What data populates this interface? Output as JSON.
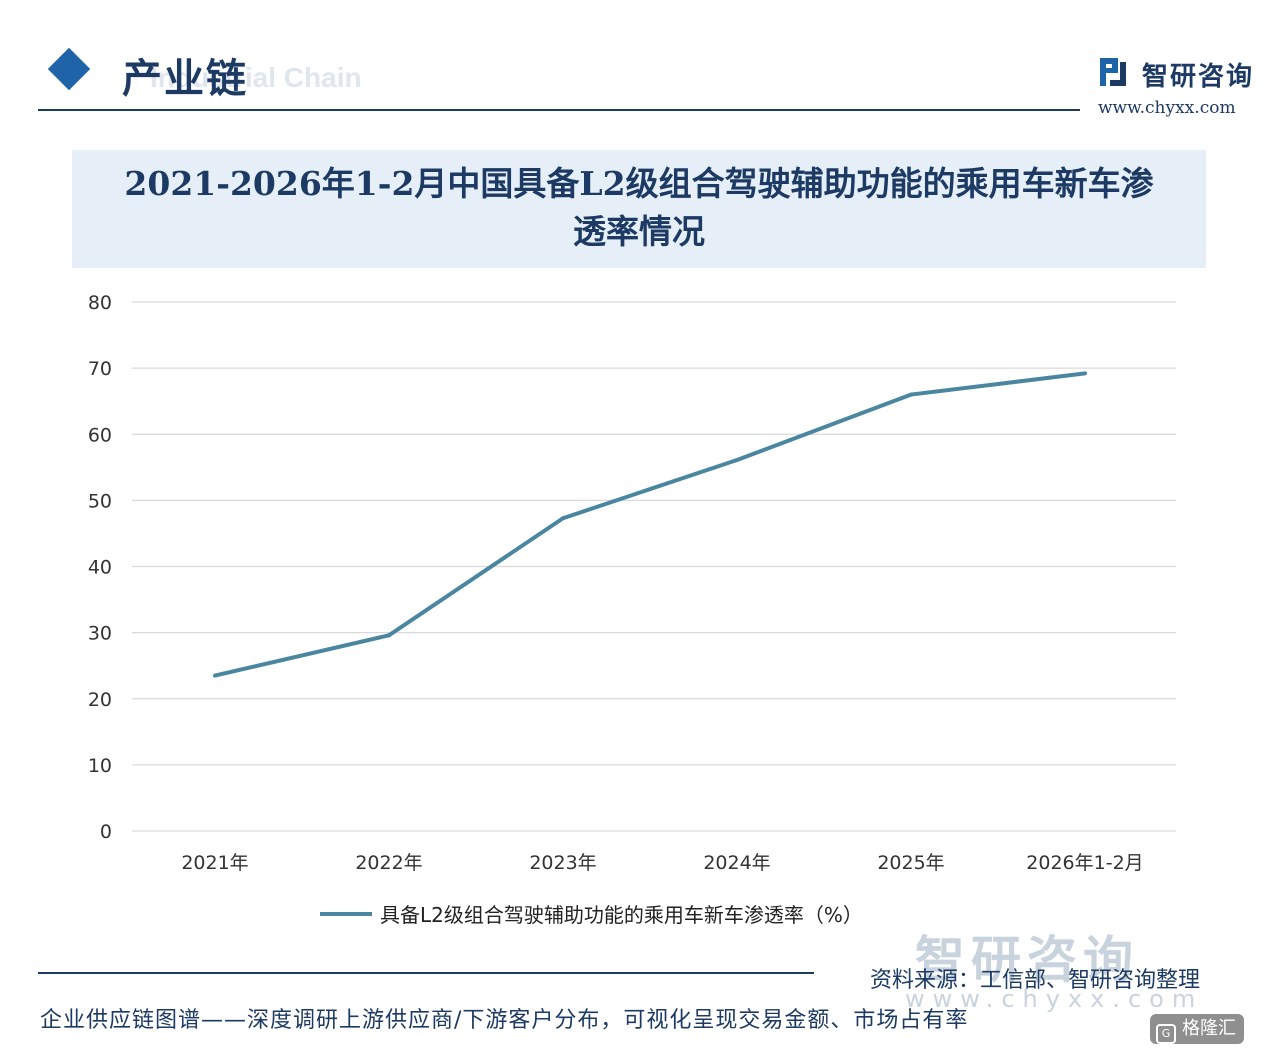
{
  "header": {
    "section_title": "产业链",
    "section_subtitle": "Industrial Chain",
    "brand_name": "智研咨询",
    "brand_url": "www.chyxx.com"
  },
  "chart_data": {
    "type": "line",
    "title": "2021-2026年1-2月中国具备L2级组合驾驶辅助功能的乘用车新车渗透率情况",
    "title_lines": [
      "2021-2026年1-2月中国具备L2级组合驾驶辅助功能的乘用车新车渗",
      "透率情况"
    ],
    "categories": [
      "2021年",
      "2022年",
      "2023年",
      "2024年",
      "2025年",
      "2026年1-2月"
    ],
    "series": [
      {
        "name": "具备L2级组合驾驶辅助功能的乘用车新车渗透率（%）",
        "values": [
          23.5,
          29.6,
          47.3,
          56.1,
          66.0,
          69.2
        ],
        "color": "#4a86a0"
      }
    ],
    "yticks": [
      0,
      10,
      20,
      30,
      40,
      50,
      60,
      70,
      80
    ],
    "ylim": [
      0,
      80
    ],
    "grid": true,
    "legend": "bottom-center"
  },
  "footer": {
    "watermark": "智研咨询",
    "watermark_url": "www.chyxx.com",
    "source": "资料来源：工信部、智研咨询整理",
    "tagline": "企业供应链图谱——深度调研上游供应商/下游客户分布，可视化呈现交易金额、市场占有率",
    "badge": "格隆汇"
  }
}
